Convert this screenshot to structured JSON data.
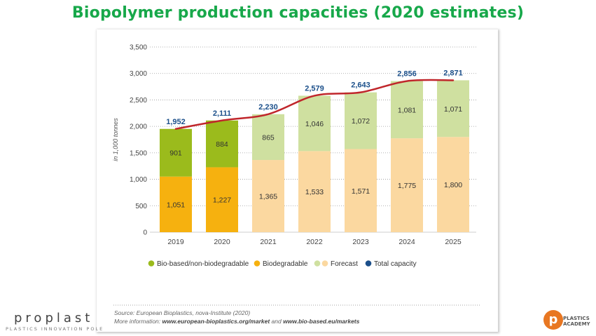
{
  "header": {
    "title": "Biopolymer production capacities (2020 estimates)"
  },
  "source": {
    "line1": "Source: European Bioplastics, nova-Institute (2020)",
    "line2_prefix": "More information: ",
    "link1": "www.european-bioplastics.org/market",
    "line2_mid": " and ",
    "link2": "www.bio-based.eu/markets"
  },
  "logos": {
    "left_brand": "proplast",
    "left_tag": "PLASTICS INNOVATION POLE",
    "right_mark": "p",
    "right_line1": "PLASTICS",
    "right_line2": "ACADEMY"
  },
  "colors": {
    "biobased": "#9bbb1c",
    "biodegradable": "#f6b10f",
    "forecast_biobased": "#cfe0a0",
    "forecast_biodegradable": "#fbd8a0",
    "total": "#1b4f8a",
    "trend": "#c0262b",
    "title": "#17a84a"
  },
  "chart_data": {
    "type": "bar",
    "stacked": true,
    "categories": [
      "2019",
      "2020",
      "2021",
      "2022",
      "2023",
      "2024",
      "2025"
    ],
    "ylabel": "in 1,000 tonnes",
    "ylim": [
      0,
      3500
    ],
    "yticks": [
      0,
      500,
      1000,
      1500,
      2000,
      2500,
      3000,
      3500
    ],
    "ytick_labels": [
      "0",
      "500",
      "1,000",
      "1,500",
      "2,000",
      "2,500",
      "3,000",
      "3,500"
    ],
    "grid": true,
    "series": [
      {
        "name": "Biodegradable",
        "values": [
          1051,
          1227,
          1365,
          1533,
          1571,
          1775,
          1800
        ],
        "labels": [
          "1,051",
          "1,227",
          "1,365",
          "1,533",
          "1,571",
          "1,775",
          "1,800"
        ]
      },
      {
        "name": "Bio-based/non-biodegradable",
        "values": [
          901,
          884,
          865,
          1046,
          1072,
          1081,
          1071
        ],
        "labels": [
          "901",
          "884",
          "865",
          "1,046",
          "1,072",
          "1,081",
          "1,071"
        ]
      }
    ],
    "forecast_from_index": 2,
    "total": {
      "name": "Total capacity",
      "values": [
        1952,
        2111,
        2230,
        2579,
        2643,
        2856,
        2871
      ],
      "labels": [
        "1,952",
        "2,111",
        "2,230",
        "2,579",
        "2,643",
        "2,856",
        "2,871"
      ]
    },
    "legend": {
      "placement": "bottom",
      "items": [
        {
          "label": "Bio-based/non-biodegradable",
          "colors": [
            "#9bbb1c"
          ]
        },
        {
          "label": "Biodegradable",
          "colors": [
            "#f6b10f"
          ]
        },
        {
          "label": "Forecast",
          "colors": [
            "#cfe0a0",
            "#fbd8a0"
          ]
        },
        {
          "label": "Total capacity",
          "colors": [
            "#1b4f8a"
          ]
        }
      ]
    }
  }
}
